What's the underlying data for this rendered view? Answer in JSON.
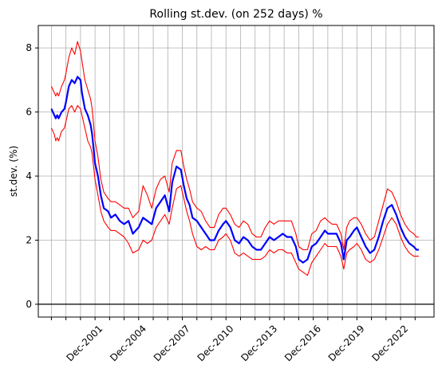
{
  "chart_data": {
    "type": "line",
    "title": "Rolling st.dev. (on 252 days) %",
    "xlabel": "",
    "ylabel": "st.dev. (%)",
    "x_start": 1999.0,
    "x_end": 2024.25,
    "xlim": [
      1998.1,
      2025.3
    ],
    "ylim": [
      -0.4,
      8.7
    ],
    "y_ticks": [
      0,
      2,
      4,
      6,
      8
    ],
    "x_ticks": [
      1999,
      2000,
      2001,
      2002,
      2003,
      2004,
      2005,
      2006,
      2007,
      2008,
      2009,
      2010,
      2011,
      2012,
      2013,
      2014,
      2015,
      2016,
      2017,
      2018,
      2019,
      2020,
      2021,
      2022,
      2023,
      2024
    ],
    "x_tick_labels": [
      {
        "x": 2002,
        "text": "Dec-2001"
      },
      {
        "x": 2005,
        "text": "Dec-2004"
      },
      {
        "x": 2008,
        "text": "Dec-2007"
      },
      {
        "x": 2011,
        "text": "Dec-2010"
      },
      {
        "x": 2014,
        "text": "Dec-2013"
      },
      {
        "x": 2017,
        "text": "Dec-2016"
      },
      {
        "x": 2020,
        "text": "Dec-2019"
      },
      {
        "x": 2023,
        "text": "Dec-2022"
      }
    ],
    "grid": true,
    "zero_line": true,
    "series": [
      {
        "color": "#0000ff",
        "x": [
          1999.0,
          1999.1,
          1999.2,
          1999.3,
          1999.4,
          1999.5,
          1999.7,
          1999.9,
          2000.0,
          2000.2,
          2000.4,
          2000.6,
          2000.8,
          2001.0,
          2001.1,
          2001.3,
          2001.5,
          2001.7,
          2001.8,
          2002.0,
          2002.2,
          2002.4,
          2002.6,
          2002.9,
          2003.1,
          2003.4,
          2003.7,
          2004.0,
          2004.3,
          2004.6,
          2005.0,
          2005.3,
          2005.6,
          2005.9,
          2006.2,
          2006.5,
          2006.8,
          2007.1,
          2007.3,
          2007.6,
          2007.9,
          2008.1,
          2008.3,
          2008.5,
          2008.7,
          2009.0,
          2009.3,
          2009.6,
          2009.9,
          2010.2,
          2010.5,
          2010.8,
          2011.0,
          2011.3,
          2011.6,
          2011.9,
          2012.2,
          2012.5,
          2012.8,
          2013.1,
          2013.4,
          2013.7,
          2014.0,
          2014.3,
          2014.6,
          2014.9,
          2015.2,
          2015.5,
          2015.8,
          2016.0,
          2016.3,
          2016.6,
          2016.9,
          2017.2,
          2017.5,
          2017.8,
          2018.0,
          2018.3,
          2018.6,
          2018.9,
          2019.1,
          2019.3,
          2019.5,
          2019.8,
          2020.0,
          2020.3,
          2020.6,
          2020.9,
          2021.2,
          2021.5,
          2021.8,
          2022.1,
          2022.4,
          2022.7,
          2023.0,
          2023.3,
          2023.6,
          2023.9,
          2024.1,
          2024.25
        ],
        "y": [
          6.1,
          6.0,
          5.9,
          5.8,
          5.9,
          5.8,
          6.0,
          6.1,
          6.3,
          6.8,
          7.0,
          6.9,
          7.1,
          7.0,
          6.6,
          6.1,
          5.9,
          5.6,
          5.3,
          4.4,
          4.0,
          3.4,
          3.0,
          2.9,
          2.7,
          2.8,
          2.6,
          2.5,
          2.6,
          2.2,
          2.4,
          2.7,
          2.6,
          2.5,
          3.0,
          3.2,
          3.4,
          2.9,
          3.8,
          4.3,
          4.2,
          3.7,
          3.3,
          3.1,
          2.7,
          2.6,
          2.4,
          2.2,
          2.0,
          2.0,
          2.3,
          2.5,
          2.6,
          2.4,
          2.0,
          1.9,
          2.1,
          2.0,
          1.8,
          1.7,
          1.7,
          1.9,
          2.1,
          2.0,
          2.1,
          2.2,
          2.1,
          2.1,
          1.8,
          1.4,
          1.3,
          1.4,
          1.8,
          1.9,
          2.1,
          2.3,
          2.2,
          2.2,
          2.2,
          1.9,
          1.4,
          2.0,
          2.1,
          2.3,
          2.4,
          2.1,
          1.8,
          1.6,
          1.7,
          2.1,
          2.6,
          3.0,
          3.1,
          2.8,
          2.4,
          2.1,
          1.9,
          1.8,
          1.7,
          1.7
        ]
      },
      {
        "color": "#ff0000",
        "x": [
          1999.0,
          1999.1,
          1999.2,
          1999.3,
          1999.4,
          1999.5,
          1999.7,
          1999.9,
          2000.0,
          2000.2,
          2000.4,
          2000.6,
          2000.8,
          2001.0,
          2001.1,
          2001.3,
          2001.5,
          2001.7,
          2001.8,
          2002.0,
          2002.2,
          2002.4,
          2002.6,
          2002.9,
          2003.1,
          2003.4,
          2003.7,
          2004.0,
          2004.3,
          2004.6,
          2005.0,
          2005.3,
          2005.6,
          2005.9,
          2006.2,
          2006.5,
          2006.8,
          2007.1,
          2007.3,
          2007.6,
          2007.9,
          2008.1,
          2008.3,
          2008.5,
          2008.7,
          2009.0,
          2009.3,
          2009.6,
          2009.9,
          2010.2,
          2010.5,
          2010.8,
          2011.0,
          2011.3,
          2011.6,
          2011.9,
          2012.2,
          2012.5,
          2012.8,
          2013.1,
          2013.4,
          2013.7,
          2014.0,
          2014.3,
          2014.6,
          2014.9,
          2015.2,
          2015.5,
          2015.8,
          2016.0,
          2016.3,
          2016.6,
          2016.9,
          2017.2,
          2017.5,
          2017.8,
          2018.0,
          2018.3,
          2018.6,
          2018.9,
          2019.1,
          2019.3,
          2019.5,
          2019.8,
          2020.0,
          2020.3,
          2020.6,
          2020.9,
          2021.2,
          2021.5,
          2021.8,
          2022.1,
          2022.4,
          2022.7,
          2023.0,
          2023.3,
          2023.6,
          2023.9,
          2024.1,
          2024.25
        ],
        "y": [
          6.8,
          6.7,
          6.6,
          6.5,
          6.6,
          6.5,
          6.8,
          7.0,
          7.2,
          7.7,
          8.0,
          7.8,
          8.2,
          7.9,
          7.6,
          7.0,
          6.7,
          6.4,
          6.1,
          5.1,
          4.6,
          3.9,
          3.5,
          3.3,
          3.2,
          3.2,
          3.1,
          3.0,
          3.0,
          2.7,
          2.9,
          3.7,
          3.4,
          3.0,
          3.6,
          3.9,
          4.0,
          3.5,
          4.4,
          4.8,
          4.8,
          4.3,
          3.9,
          3.6,
          3.2,
          3.0,
          2.9,
          2.6,
          2.4,
          2.4,
          2.8,
          3.0,
          3.0,
          2.8,
          2.5,
          2.4,
          2.6,
          2.5,
          2.2,
          2.1,
          2.1,
          2.4,
          2.6,
          2.5,
          2.6,
          2.6,
          2.6,
          2.6,
          2.2,
          1.8,
          1.7,
          1.7,
          2.2,
          2.3,
          2.6,
          2.7,
          2.6,
          2.5,
          2.5,
          2.2,
          1.7,
          2.4,
          2.6,
          2.7,
          2.7,
          2.5,
          2.2,
          2.0,
          2.1,
          2.6,
          3.1,
          3.6,
          3.5,
          3.2,
          2.8,
          2.5,
          2.3,
          2.2,
          2.1,
          2.1
        ]
      },
      {
        "color": "#ff0000",
        "x": [
          1999.0,
          1999.1,
          1999.2,
          1999.3,
          1999.4,
          1999.5,
          1999.7,
          1999.9,
          2000.0,
          2000.2,
          2000.4,
          2000.6,
          2000.8,
          2001.0,
          2001.1,
          2001.3,
          2001.5,
          2001.7,
          2001.8,
          2002.0,
          2002.2,
          2002.4,
          2002.6,
          2002.9,
          2003.1,
          2003.4,
          2003.7,
          2004.0,
          2004.3,
          2004.6,
          2005.0,
          2005.3,
          2005.6,
          2005.9,
          2006.2,
          2006.5,
          2006.8,
          2007.1,
          2007.3,
          2007.6,
          2007.9,
          2008.1,
          2008.3,
          2008.5,
          2008.7,
          2009.0,
          2009.3,
          2009.6,
          2009.9,
          2010.2,
          2010.5,
          2010.8,
          2011.0,
          2011.3,
          2011.6,
          2011.9,
          2012.2,
          2012.5,
          2012.8,
          2013.1,
          2013.4,
          2013.7,
          2014.0,
          2014.3,
          2014.6,
          2014.9,
          2015.2,
          2015.5,
          2015.8,
          2016.0,
          2016.3,
          2016.6,
          2016.9,
          2017.2,
          2017.5,
          2017.8,
          2018.0,
          2018.3,
          2018.6,
          2018.9,
          2019.1,
          2019.3,
          2019.5,
          2019.8,
          2020.0,
          2020.3,
          2020.6,
          2020.9,
          2021.2,
          2021.5,
          2021.8,
          2022.1,
          2022.4,
          2022.7,
          2023.0,
          2023.3,
          2023.6,
          2023.9,
          2024.1,
          2024.25
        ],
        "y": [
          5.5,
          5.4,
          5.3,
          5.1,
          5.2,
          5.1,
          5.4,
          5.5,
          5.7,
          6.1,
          6.2,
          6.0,
          6.2,
          6.1,
          5.9,
          5.5,
          5.1,
          4.9,
          4.7,
          3.9,
          3.4,
          2.9,
          2.6,
          2.4,
          2.3,
          2.3,
          2.2,
          2.1,
          1.9,
          1.6,
          1.7,
          2.0,
          1.9,
          2.0,
          2.4,
          2.6,
          2.8,
          2.5,
          3.0,
          3.6,
          3.7,
          3.3,
          2.9,
          2.6,
          2.2,
          1.8,
          1.7,
          1.8,
          1.7,
          1.7,
          2.0,
          2.1,
          2.2,
          2.0,
          1.6,
          1.5,
          1.6,
          1.5,
          1.4,
          1.4,
          1.4,
          1.5,
          1.7,
          1.6,
          1.7,
          1.7,
          1.6,
          1.6,
          1.3,
          1.1,
          1.0,
          0.9,
          1.3,
          1.5,
          1.7,
          1.9,
          1.8,
          1.8,
          1.8,
          1.5,
          1.1,
          1.6,
          1.7,
          1.8,
          1.9,
          1.7,
          1.4,
          1.3,
          1.4,
          1.7,
          2.1,
          2.5,
          2.7,
          2.5,
          2.1,
          1.8,
          1.6,
          1.5,
          1.5,
          1.5
        ]
      }
    ]
  }
}
